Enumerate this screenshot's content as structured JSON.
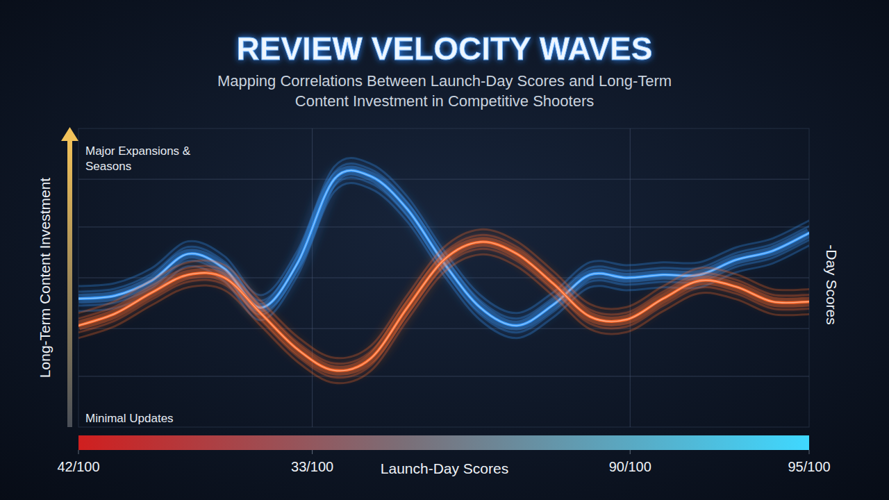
{
  "chart_data": {
    "type": "line",
    "title": "REVIEW VELOCITY WAVES",
    "subtitle": "Mapping Correlations Between Launch-Day Scores and Long-Term Content Investment in Competitive Shooters",
    "x_label": "Launch-Day Scores",
    "y_label": "Long-Term Content Investment",
    "y2_label": "-Day Scores",
    "x": [
      0,
      5,
      10,
      15,
      20,
      25,
      30,
      35,
      40,
      45,
      50,
      55,
      60,
      65,
      70,
      75,
      80,
      85,
      90,
      95,
      100
    ],
    "xlim": [
      0,
      100
    ],
    "xticks": [
      {
        "value": 0,
        "label": "42/100"
      },
      {
        "value": 32,
        "label": "33/100"
      },
      {
        "value": 75.5,
        "label": "90/100"
      },
      {
        "value": 100,
        "label": "95/100"
      }
    ],
    "ylim": [
      0,
      100
    ],
    "yticks": [
      17,
      33,
      50,
      67,
      83
    ],
    "tick_labels": "x",
    "grid": true,
    "annotations": [
      {
        "text": "Major Expansions & Seasons",
        "y": 90
      },
      {
        "text": "Minimal Updates",
        "y": 3
      }
    ],
    "series": [
      {
        "color": "#3a9cff",
        "values": [
          43,
          44,
          49,
          58,
          53,
          40,
          55,
          83,
          84,
          73,
          55,
          40,
          34,
          41,
          51,
          50,
          51,
          51,
          56,
          59,
          65
        ]
      },
      {
        "color": "#ff6a2a",
        "values": [
          34,
          38,
          45,
          51,
          50,
          38,
          26,
          19,
          23,
          40,
          56,
          62,
          58,
          48,
          37,
          36,
          43,
          49,
          47,
          42,
          42
        ]
      }
    ]
  }
}
